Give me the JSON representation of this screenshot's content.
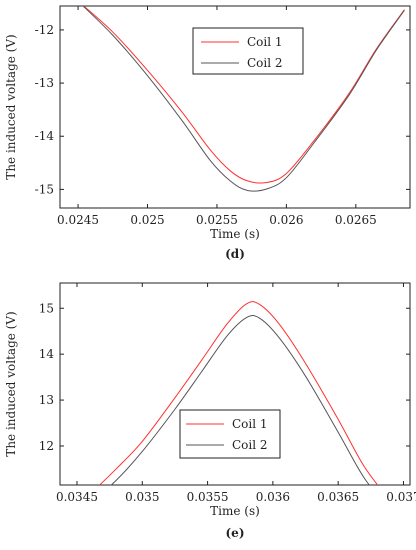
{
  "chart_data": [
    {
      "type": "line",
      "caption": "(d)",
      "xlabel": "Time (s)",
      "ylabel": "The induced voltage (V)",
      "xlim": [
        0.02437,
        0.02689
      ],
      "ylim": [
        -15.35,
        -11.55
      ],
      "xticks": [
        0.0245,
        0.025,
        0.0255,
        0.026,
        0.0265
      ],
      "xtick_labels": [
        "0.0245",
        "0.025",
        "0.0255",
        "0.026",
        "0.0265"
      ],
      "yticks": [
        -12,
        -13,
        -14,
        -15
      ],
      "ytick_labels": [
        "-12",
        "-13",
        "-14",
        "-15"
      ],
      "legend_position": "top-right",
      "series": [
        {
          "name": "Coil 1",
          "color": "#ff3030",
          "x": [
            0.0245,
            0.02475,
            0.025,
            0.02525,
            0.02545,
            0.0256,
            0.02572,
            0.02586,
            0.026,
            0.0262,
            0.02645,
            0.02665,
            0.02685
          ],
          "y": [
            -11.46,
            -12.04,
            -12.76,
            -13.55,
            -14.25,
            -14.66,
            -14.84,
            -14.87,
            -14.7,
            -14.08,
            -13.2,
            -12.35,
            -11.62
          ]
        },
        {
          "name": "Coil 2",
          "color": "#555555",
          "x": [
            0.0245,
            0.02475,
            0.025,
            0.02525,
            0.02545,
            0.0256,
            0.02572,
            0.02586,
            0.026,
            0.0262,
            0.02645,
            0.02665,
            0.02685
          ],
          "y": [
            -11.46,
            -12.1,
            -12.86,
            -13.71,
            -14.45,
            -14.85,
            -15.02,
            -14.99,
            -14.78,
            -14.12,
            -13.23,
            -12.37,
            -11.63
          ]
        }
      ]
    },
    {
      "type": "line",
      "caption": "(e)",
      "xlabel": "Time (s)",
      "ylabel": "The induced voltage (V)",
      "xlim": [
        0.03437,
        0.03705
      ],
      "ylim": [
        11.15,
        15.55
      ],
      "xticks": [
        0.0345,
        0.035,
        0.0355,
        0.036,
        0.0365,
        0.037
      ],
      "xtick_labels": [
        "0.0345",
        "0.035",
        "0.0355",
        "0.036",
        "0.0365",
        "0.037"
      ],
      "yticks": [
        12,
        13,
        14,
        15
      ],
      "ytick_labels": [
        "12",
        "13",
        "14",
        "15"
      ],
      "legend_position": "bottom-left",
      "series": [
        {
          "name": "Coil 1",
          "color": "#ff3030",
          "x": [
            0.0346,
            0.0348,
            0.035,
            0.03525,
            0.03545,
            0.03565,
            0.0358,
            0.0359,
            0.03605,
            0.03625,
            0.0365,
            0.0367,
            0.0369
          ],
          "y": [
            10.95,
            11.5,
            12.1,
            13.05,
            13.85,
            14.66,
            15.1,
            15.08,
            14.65,
            13.8,
            12.58,
            11.55,
            10.8
          ]
        },
        {
          "name": "Coil 2",
          "color": "#555555",
          "x": [
            0.0346,
            0.0348,
            0.035,
            0.03525,
            0.03545,
            0.03565,
            0.0358,
            0.0359,
            0.03605,
            0.03625,
            0.0365,
            0.0367,
            0.0369
          ],
          "y": [
            10.75,
            11.25,
            11.88,
            12.8,
            13.6,
            14.4,
            14.8,
            14.78,
            14.35,
            13.52,
            12.3,
            11.3,
            10.6
          ]
        }
      ]
    }
  ]
}
